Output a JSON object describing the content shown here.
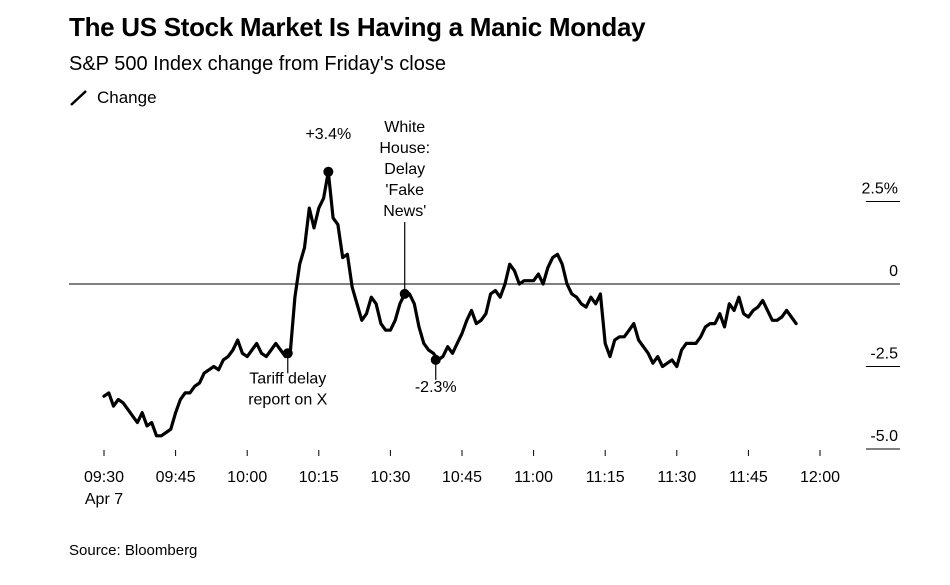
{
  "chart_data": {
    "type": "line",
    "title": "The US Stock Market Is Having a Manic Monday",
    "subtitle": "S&P 500 Index change from Friday's close",
    "legend": [
      "Change"
    ],
    "legend_placement": "top-left",
    "source": "Source: Bloomberg",
    "x_ticks": [
      {
        "minute": 0,
        "label": "09:30",
        "sublabel": "Apr 7"
      },
      {
        "minute": 15,
        "label": "09:45"
      },
      {
        "minute": 30,
        "label": "10:00"
      },
      {
        "minute": 45,
        "label": "10:15"
      },
      {
        "minute": 60,
        "label": "10:30"
      },
      {
        "minute": 75,
        "label": "10:45"
      },
      {
        "minute": 90,
        "label": "11:00"
      },
      {
        "minute": 105,
        "label": "11:15"
      },
      {
        "minute": 120,
        "label": "11:30"
      },
      {
        "minute": 135,
        "label": "11:45"
      },
      {
        "minute": 150,
        "label": "12:00"
      }
    ],
    "y_ticks": [
      {
        "value": 2.5,
        "label": "2.5%"
      },
      {
        "value": 0,
        "label": "0"
      },
      {
        "value": -2.5,
        "label": "-2.5"
      },
      {
        "value": -5,
        "label": "-5.0"
      }
    ],
    "xlim": [
      0,
      150
    ],
    "ylim": [
      -5,
      2.5
    ],
    "series": [
      {
        "name": "Change",
        "color": "#000000",
        "points": [
          [
            0,
            -3.4
          ],
          [
            1,
            -3.3
          ],
          [
            2,
            -3.7
          ],
          [
            3,
            -3.5
          ],
          [
            4,
            -3.6
          ],
          [
            5,
            -3.8
          ],
          [
            6,
            -4.0
          ],
          [
            7,
            -4.2
          ],
          [
            8,
            -3.9
          ],
          [
            9,
            -4.3
          ],
          [
            10,
            -4.2
          ],
          [
            11,
            -4.6
          ],
          [
            12,
            -4.6
          ],
          [
            13,
            -4.5
          ],
          [
            14,
            -4.4
          ],
          [
            15,
            -3.9
          ],
          [
            16,
            -3.5
          ],
          [
            17,
            -3.3
          ],
          [
            18,
            -3.3
          ],
          [
            19,
            -3.1
          ],
          [
            20,
            -3.0
          ],
          [
            21,
            -2.7
          ],
          [
            22,
            -2.6
          ],
          [
            23,
            -2.5
          ],
          [
            24,
            -2.6
          ],
          [
            25,
            -2.3
          ],
          [
            26,
            -2.2
          ],
          [
            27,
            -2.0
          ],
          [
            28,
            -1.7
          ],
          [
            29,
            -2.1
          ],
          [
            30,
            -2.2
          ],
          [
            31,
            -2.0
          ],
          [
            32,
            -1.8
          ],
          [
            33,
            -2.1
          ],
          [
            34,
            -2.2
          ],
          [
            35,
            -2.0
          ],
          [
            36,
            -1.8
          ],
          [
            37,
            -2.0
          ],
          [
            38,
            -2.2
          ],
          [
            39,
            -2.1
          ],
          [
            40,
            -0.4
          ],
          [
            41,
            0.6
          ],
          [
            42,
            1.1
          ],
          [
            43,
            2.3
          ],
          [
            44,
            1.7
          ],
          [
            45,
            2.3
          ],
          [
            46,
            2.6
          ],
          [
            47,
            3.4
          ],
          [
            48,
            2.0
          ],
          [
            49,
            1.8
          ],
          [
            50,
            0.8
          ],
          [
            51,
            0.9
          ],
          [
            52,
            -0.1
          ],
          [
            53,
            -0.6
          ],
          [
            54,
            -1.1
          ],
          [
            55,
            -0.9
          ],
          [
            56,
            -0.4
          ],
          [
            57,
            -0.6
          ],
          [
            58,
            -1.2
          ],
          [
            59,
            -1.4
          ],
          [
            60,
            -1.4
          ],
          [
            61,
            -1.1
          ],
          [
            62,
            -0.6
          ],
          [
            63,
            -0.3
          ],
          [
            64,
            -0.3
          ],
          [
            65,
            -0.6
          ],
          [
            66,
            -1.3
          ],
          [
            67,
            -1.8
          ],
          [
            68,
            -2.0
          ],
          [
            69,
            -2.1
          ],
          [
            70,
            -2.3
          ],
          [
            71,
            -2.2
          ],
          [
            72,
            -1.9
          ],
          [
            73,
            -2.1
          ],
          [
            74,
            -1.8
          ],
          [
            75,
            -1.5
          ],
          [
            76,
            -1.1
          ],
          [
            77,
            -0.8
          ],
          [
            78,
            -1.2
          ],
          [
            79,
            -1.1
          ],
          [
            80,
            -0.9
          ],
          [
            81,
            -0.3
          ],
          [
            82,
            -0.2
          ],
          [
            83,
            -0.4
          ],
          [
            84,
            0.0
          ],
          [
            85,
            0.6
          ],
          [
            86,
            0.4
          ],
          [
            87,
            0.0
          ],
          [
            88,
            0.1
          ],
          [
            89,
            0.1
          ],
          [
            90,
            0.1
          ],
          [
            91,
            0.3
          ],
          [
            92,
            0.0
          ],
          [
            93,
            0.5
          ],
          [
            94,
            0.8
          ],
          [
            95,
            0.9
          ],
          [
            96,
            0.6
          ],
          [
            97,
            0.0
          ],
          [
            98,
            -0.3
          ],
          [
            99,
            -0.4
          ],
          [
            100,
            -0.6
          ],
          [
            101,
            -0.7
          ],
          [
            102,
            -0.4
          ],
          [
            103,
            -0.6
          ],
          [
            104,
            -0.3
          ],
          [
            105,
            -1.8
          ],
          [
            106,
            -2.2
          ],
          [
            107,
            -1.7
          ],
          [
            108,
            -1.6
          ],
          [
            109,
            -1.6
          ],
          [
            110,
            -1.4
          ],
          [
            111,
            -1.2
          ],
          [
            112,
            -1.7
          ],
          [
            113,
            -1.9
          ],
          [
            114,
            -2.1
          ],
          [
            115,
            -2.4
          ],
          [
            116,
            -2.2
          ],
          [
            117,
            -2.5
          ],
          [
            118,
            -2.4
          ],
          [
            119,
            -2.3
          ],
          [
            120,
            -2.5
          ],
          [
            121,
            -2.0
          ],
          [
            122,
            -1.8
          ],
          [
            123,
            -1.8
          ],
          [
            124,
            -1.8
          ],
          [
            125,
            -1.6
          ],
          [
            126,
            -1.3
          ],
          [
            127,
            -1.2
          ],
          [
            128,
            -1.2
          ],
          [
            129,
            -0.9
          ],
          [
            130,
            -1.3
          ],
          [
            131,
            -0.6
          ],
          [
            132,
            -0.8
          ],
          [
            133,
            -0.4
          ],
          [
            134,
            -0.9
          ],
          [
            135,
            -1.0
          ],
          [
            136,
            -0.8
          ],
          [
            137,
            -0.7
          ],
          [
            138,
            -0.5
          ],
          [
            139,
            -0.8
          ],
          [
            140,
            -1.1
          ],
          [
            141,
            -1.1
          ],
          [
            142,
            -1.0
          ],
          [
            143,
            -0.8
          ],
          [
            144,
            -1.0
          ],
          [
            145,
            -1.2
          ]
        ]
      }
    ],
    "annotations": [
      {
        "x": 38.5,
        "y": -2.1,
        "lines": [
          "Tariff delay",
          "report on X"
        ],
        "position": "below"
      },
      {
        "x": 47,
        "y": 3.4,
        "lines": [
          "+3.4%"
        ],
        "position": "above"
      },
      {
        "x": 63,
        "y": -0.3,
        "lines": [
          "White",
          "House:",
          "Delay",
          "'Fake",
          "News'"
        ],
        "position": "above"
      },
      {
        "x": 69.5,
        "y": -2.3,
        "lines": [
          "-2.3%"
        ],
        "position": "below"
      }
    ]
  }
}
